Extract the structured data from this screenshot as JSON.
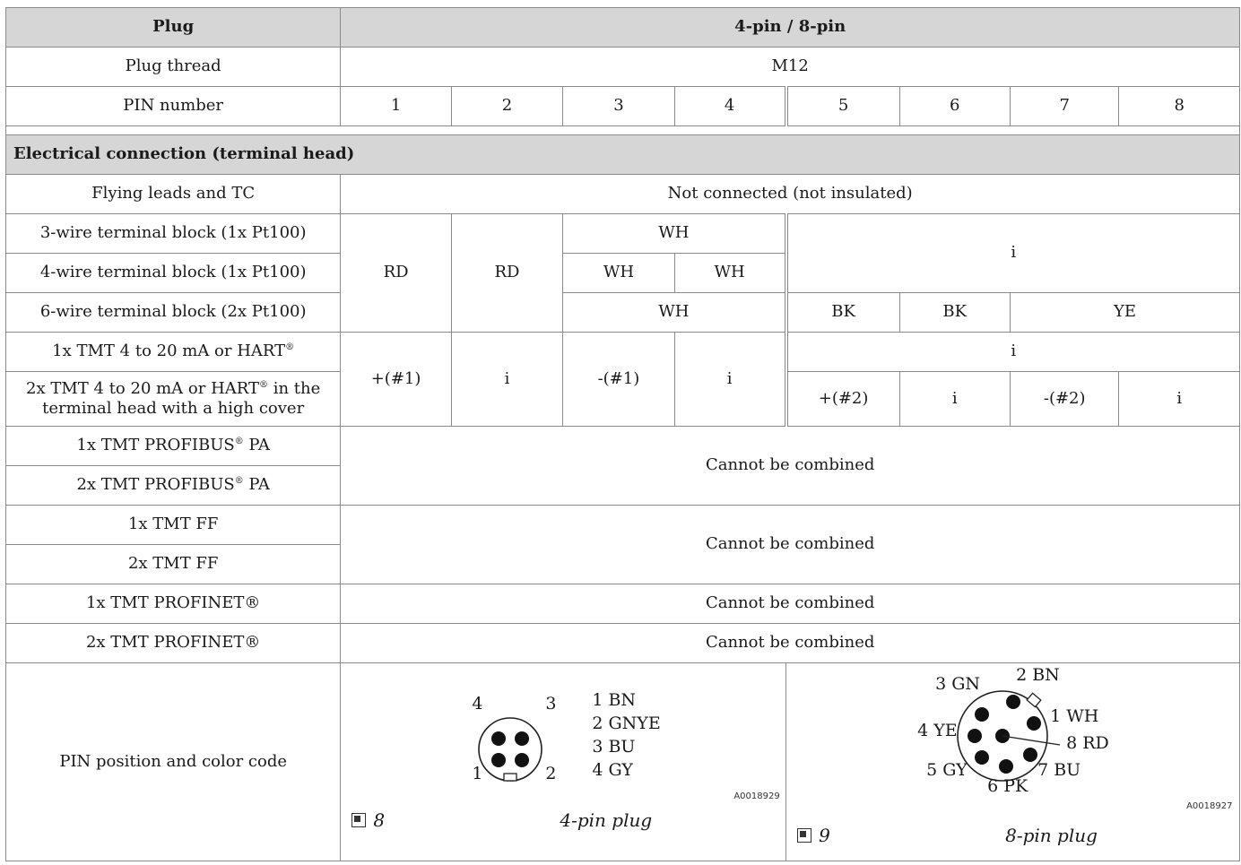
{
  "header": {
    "plug_label": "Plug",
    "plug_value": "4-pin / 8-pin",
    "thread_label": "Plug thread",
    "thread_value": "M12",
    "pin_label": "PIN number",
    "pins": [
      "1",
      "2",
      "3",
      "4",
      "5",
      "6",
      "7",
      "8"
    ]
  },
  "section_title": "Electrical connection (terminal head)",
  "rows": {
    "flying_leads": {
      "label": "Flying leads and TC",
      "value": "Not connected (not insulated)"
    },
    "wire3": {
      "label": "3-wire terminal block (1x Pt100)",
      "c3_4": "WH"
    },
    "wire4": {
      "label": "4-wire terminal block (1x Pt100)",
      "c3": "WH",
      "c4": "WH"
    },
    "wire6": {
      "label": "6-wire terminal block (2x Pt100)",
      "c3_4": "WH",
      "c5": "BK",
      "c6": "BK",
      "c7_8": "YE"
    },
    "wire_common": {
      "c1": "RD",
      "c2": "RD",
      "c5_8": "i"
    },
    "tmt1_hart": {
      "label_pre": "1x TMT 4 to 20 mA or HART",
      "label_sup": "®",
      "c5_8": "i"
    },
    "tmt2_hart": {
      "label_pre": "2x TMT 4 to 20 mA or HART",
      "label_sup": "®",
      "label_post": " in the terminal head with a high cover",
      "c5": "+(#2)",
      "c6": "i",
      "c7": "-(#2)",
      "c8": "i"
    },
    "hart_common": {
      "c1": "+(#1)",
      "c2": "i",
      "c3": "-(#1)",
      "c4": "i"
    },
    "profibus1": {
      "label_pre": "1x TMT PROFIBUS",
      "label_sup": "®",
      "label_post": " PA"
    },
    "profibus2": {
      "label_pre": "2x TMT PROFIBUS",
      "label_sup": "®",
      "label_post": " PA"
    },
    "profibus_value": "Cannot be combined",
    "ff1": {
      "label": "1x TMT FF"
    },
    "ff2": {
      "label": "2x TMT FF"
    },
    "ff_value": "Cannot be combined",
    "profinet1": {
      "label": "1x TMT PROFINET®",
      "value": "Cannot be combined"
    },
    "profinet2": {
      "label": "2x TMT PROFINET®",
      "value": "Cannot be combined"
    },
    "pin_position": {
      "label": "PIN position and color code"
    }
  },
  "figure4": {
    "pin_numbers": [
      "4",
      "3",
      "1",
      "2"
    ],
    "legend": [
      "1 BN",
      "2 GNYE",
      "3 BU",
      "4 GY"
    ],
    "code": "A0018929",
    "number": "8",
    "caption": "4-pin plug"
  },
  "figure8": {
    "labels": [
      "3 GN",
      "2 BN",
      "1 WH",
      "4 YE",
      "8 RD",
      "5 GY",
      "7 BU",
      "6 PK"
    ],
    "code": "A0018927",
    "number": "9",
    "caption": "8-pin plug"
  },
  "colors": {
    "header_bg": "#d6d6d6",
    "border": "#8a8a8a"
  }
}
